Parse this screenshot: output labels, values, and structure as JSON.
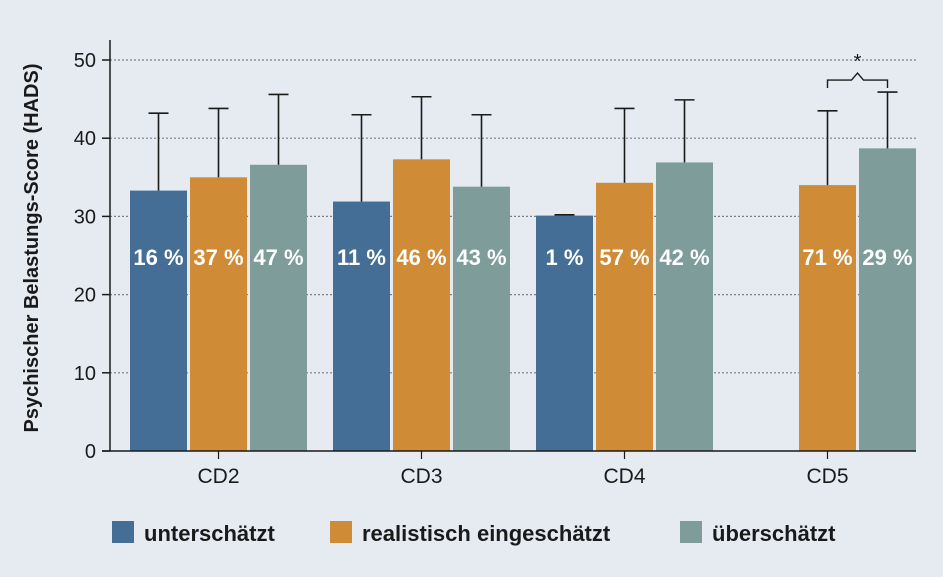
{
  "chart_data": {
    "type": "bar",
    "ylabel": "Psychischer Belastungs-Score (HADS)",
    "xlabel": "",
    "ylim": [
      0,
      52
    ],
    "yticks": [
      "0",
      "10",
      "20",
      "30",
      "40",
      "50"
    ],
    "grid": true,
    "legend_position": "bottom",
    "categories": [
      "CD2",
      "CD3",
      "CD4",
      "CD5"
    ],
    "series": [
      {
        "name": "unterschätzt",
        "color": "#446e95",
        "values": [
          33.3,
          31.9,
          30.1,
          null
        ],
        "error_upper": [
          43.2,
          43.0,
          30.2,
          null
        ],
        "labels": [
          "16 %",
          "11 %",
          "1 %",
          ""
        ]
      },
      {
        "name": "realistisch eingeschätzt",
        "color": "#cf8b35",
        "values": [
          35.0,
          37.3,
          34.3,
          34.0
        ],
        "error_upper": [
          43.8,
          45.3,
          43.8,
          43.5
        ],
        "labels": [
          "37 %",
          "46 %",
          "57 %",
          "71 %"
        ]
      },
      {
        "name": "überschätzt",
        "color": "#7d9c9a",
        "values": [
          36.6,
          33.8,
          36.9,
          38.7
        ],
        "error_upper": [
          45.6,
          43.0,
          44.9,
          45.9
        ],
        "labels": [
          "47 %",
          "43 %",
          "42 %",
          "29 %"
        ]
      }
    ],
    "annotations": [
      {
        "text": "*",
        "category": "CD5",
        "between": [
          "realistisch eingeschätzt",
          "überschätzt"
        ]
      }
    ]
  }
}
